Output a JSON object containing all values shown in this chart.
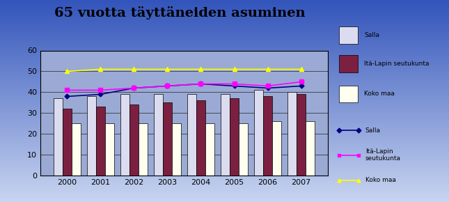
{
  "title": "65 vuotta täyttäneiden asuminen",
  "years": [
    2000,
    2001,
    2002,
    2003,
    2004,
    2005,
    2006,
    2007
  ],
  "bar_salla": [
    37,
    38,
    39,
    39,
    39,
    39,
    41,
    40
  ],
  "bar_ita": [
    32,
    33,
    34,
    35,
    36,
    37,
    38,
    39
  ],
  "bar_koko": [
    25,
    25,
    25,
    25,
    25,
    25,
    26,
    26
  ],
  "line_salla": [
    38,
    39,
    42,
    43,
    44,
    43,
    42,
    43
  ],
  "line_ita": [
    41,
    41,
    42,
    43,
    44,
    44,
    43,
    45
  ],
  "line_koko": [
    50,
    51,
    51,
    51,
    51,
    51,
    51,
    51
  ],
  "bar_color_salla": "#dcdcf0",
  "bar_color_ita": "#7b2040",
  "bar_color_koko": "#fffff0",
  "line_color_salla": "#000080",
  "line_color_ita": "#ff00ff",
  "line_color_koko": "#ffff00",
  "ylim": [
    0,
    60
  ],
  "yticks": [
    0,
    10,
    20,
    30,
    40,
    50,
    60
  ],
  "title_fontsize": 14,
  "bar_legend_labels": [
    "Salla",
    "Itä-Lapin seutukunta",
    "Koko maa"
  ],
  "line_legend_labels": [
    "Salla",
    "Itä-Lapin\nseutukunta",
    "Koko maa"
  ]
}
